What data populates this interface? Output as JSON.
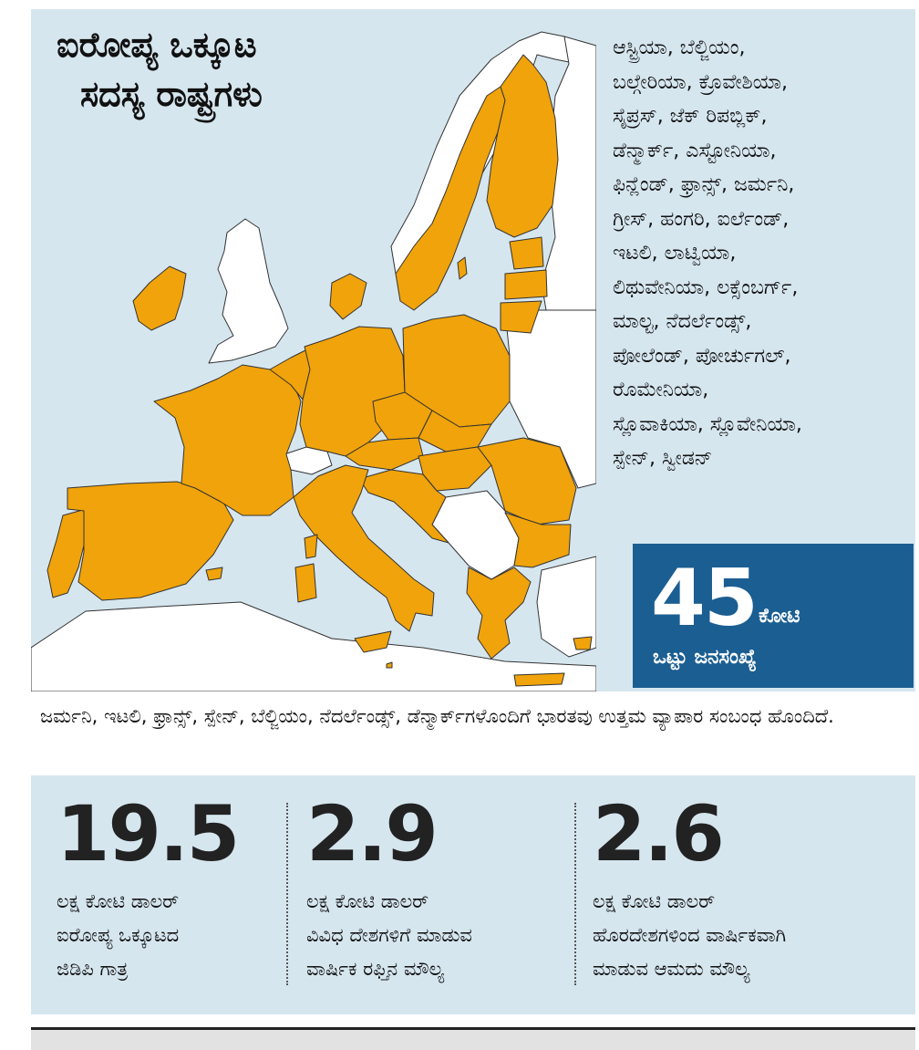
{
  "colors": {
    "eu_member": "#f0a30a",
    "non_member": "#ffffff",
    "sea": "#d6e6ef",
    "border": "#333333",
    "highlight_box": "#1b5e92"
  },
  "title": {
    "line1": "ಐರೋಪ್ಯ ಒಕ್ಕೂಟ",
    "line2": "ಸದಸ್ಯ ರಾಷ್ಟ್ರಗಳು"
  },
  "members": [
    "ಆಸ್ಟ್ರಿಯಾ, ಬೆಲ್ಜಿಯಂ,",
    "ಬಲ್ಗೇರಿಯಾ, ಕ್ರೊವೇಶಿಯಾ,",
    "ಸೈಪ್ರಸ್, ಜೆಕ್ ರಿಪಬ್ಲಿಕ್,",
    "ಡೆನ್ಮಾರ್ಕ್, ಎಸ್ಟೋನಿಯಾ,",
    "ಫಿನ್ಲೆಂಡ್, ಫ್ರಾನ್ಸ್, ಜರ್ಮನಿ,",
    "ಗ್ರೀಸ್, ಹಂಗರಿ, ಐರ್ಲೆಂಡ್,",
    "ಇಟಲಿ, ಲಾಟ್ವಿಯಾ,",
    "ಲಿಥುವೇನಿಯಾ, ಲಕ್ಸೆಂಬರ್ಗ್,",
    "ಮಾಲ್ಟ, ನೆದರ್ಲೆಂಡ್ಸ್,",
    "ಪೋಲೆಂಡ್, ಪೋರ್ಚುಗಲ್,",
    "ರೊಮೇನಿಯಾ,",
    "ಸ್ಲೊವಾಕಿಯಾ, ಸ್ಲೊವೇನಿಯಾ,",
    "ಸ್ಪೇನ್, ಸ್ವೀಡನ್"
  ],
  "population": {
    "value": "45",
    "unit": "ಕೋಟಿ",
    "label": "ಒಟ್ಟು ಜನಸಂಖ್ಯೆ"
  },
  "trade_note": "ಜರ್ಮನಿ, ಇಟಲಿ, ಫ್ರಾನ್ಸ್, ಸ್ಪೇನ್, ಬೆಲ್ಜಿಯಂ, ನೆದರ್ಲೆಂಡ್ಸ್, ಡೆನ್ಮಾರ್ಕ್‌ಗಳೊಂದಿಗೆ ಭಾರತವು ಉತ್ತಮ ವ್ಯಾಪಾರ ಸಂಬಂಧ ಹೊಂದಿದೆ.",
  "stats": [
    {
      "value": "19.5",
      "desc": [
        "ಲಕ್ಷ ಕೋಟಿ ಡಾಲರ್",
        "ಐರೋಪ್ಯ ಒಕ್ಕೂಟದ",
        "ಜಿಡಿಪಿ ಗಾತ್ರ"
      ]
    },
    {
      "value": "2.9",
      "desc": [
        "ಲಕ್ಷ ಕೋಟಿ ಡಾಲರ್",
        "ವಿವಿಧ ದೇಶಗಳಿಗೆ ಮಾಡುವ",
        "ವಾರ್ಷಿಕ ರಫ್ತಿನ ಮೌಲ್ಯ"
      ]
    },
    {
      "value": "2.6",
      "desc": [
        "ಲಕ್ಷ ಕೋಟಿ ಡಾಲರ್",
        "ಹೊರದೇಶಗಳಿಂದ ವಾರ್ಷಿಕವಾಗಿ",
        "ಮಾಡುವ ಆಮದು ಮೌಲ್ಯ"
      ]
    }
  ]
}
